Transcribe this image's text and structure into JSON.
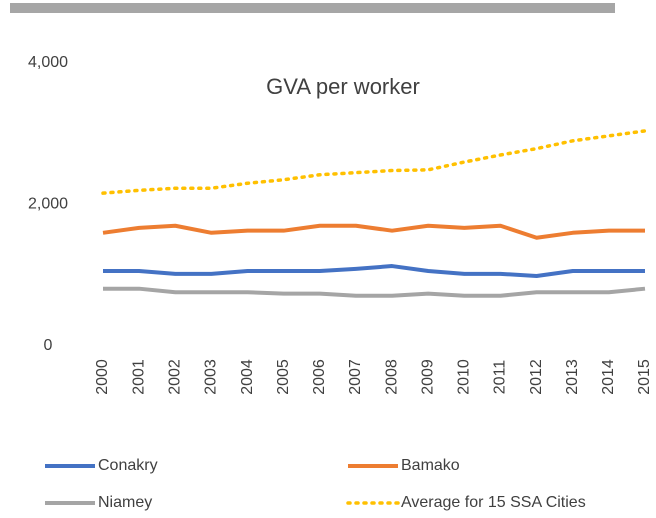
{
  "chart_data": {
    "type": "line",
    "title": "GVA per worker",
    "categories": [
      "2000",
      "2001",
      "2002",
      "2003",
      "2004",
      "2005",
      "2006",
      "2007",
      "2008",
      "2009",
      "2010",
      "2011",
      "2012",
      "2013",
      "2014",
      "2015"
    ],
    "series": [
      {
        "name": "Conakry",
        "color": "#4472c4",
        "style": "solid",
        "values": [
          1060,
          1060,
          1020,
          1020,
          1060,
          1060,
          1060,
          1090,
          1130,
          1060,
          1020,
          1020,
          990,
          1060,
          1060,
          1060
        ]
      },
      {
        "name": "Bamako",
        "color": "#ed7d31",
        "style": "solid",
        "values": [
          1600,
          1670,
          1700,
          1600,
          1630,
          1630,
          1700,
          1700,
          1630,
          1700,
          1670,
          1700,
          1530,
          1600,
          1630,
          1630
        ]
      },
      {
        "name": "Niamey",
        "color": "#a5a5a5",
        "style": "solid",
        "values": [
          810,
          810,
          760,
          760,
          760,
          740,
          740,
          710,
          710,
          740,
          710,
          710,
          760,
          760,
          760,
          810
        ]
      },
      {
        "name": "Average  for 15 SSA Cities",
        "color": "#ffc000",
        "style": "dotted",
        "values": [
          2160,
          2200,
          2230,
          2230,
          2300,
          2350,
          2420,
          2450,
          2480,
          2490,
          2600,
          2700,
          2790,
          2900,
          2970,
          3040
        ]
      }
    ],
    "ylim": [
      0,
      4000
    ],
    "yticks": [
      0,
      {
        "value": 2000,
        "label": "2,000"
      },
      {
        "value": 4000,
        "label": "4,000"
      }
    ],
    "grid": false
  }
}
